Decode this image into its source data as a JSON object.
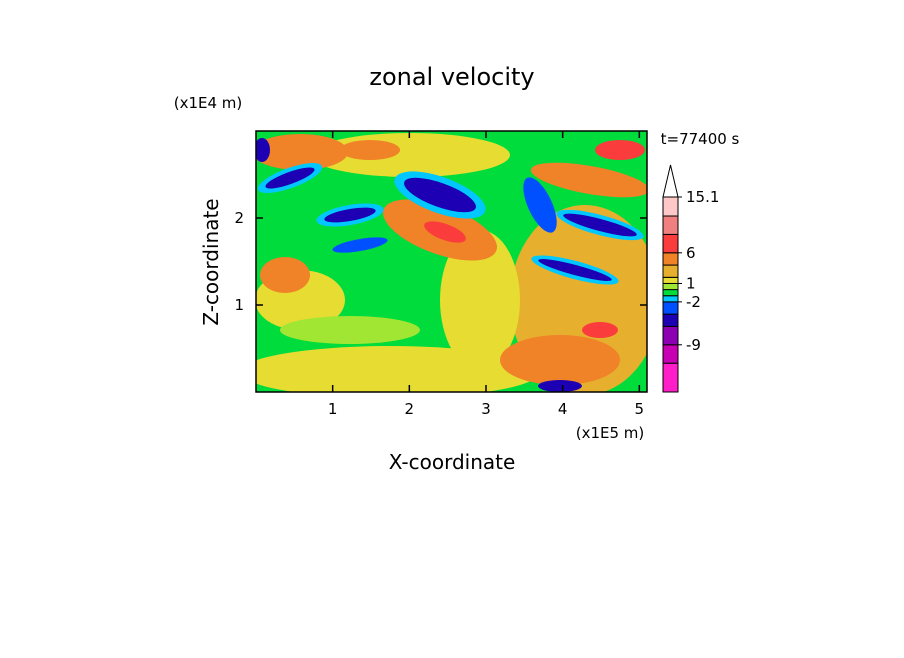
{
  "chart_data": {
    "type": "contour",
    "title": "zonal velocity",
    "time_label": "t=77400 s",
    "x_label": "X-coordinate",
    "y_label": "Z-coordinate",
    "x_unit": "(x1E5 m)",
    "y_unit": "(x1E4 m)",
    "xlim": [
      0,
      5.1
    ],
    "ylim": [
      0,
      3
    ],
    "xticks": [
      1,
      2,
      3,
      4,
      5
    ],
    "yticks": [
      1,
      2
    ],
    "colorbar": {
      "levels": [
        -16.7,
        -12,
        -9,
        -6,
        -4,
        -2,
        -1,
        0,
        1,
        2,
        4,
        6,
        9,
        12,
        15.1
      ],
      "colors": [
        "#ff1ec8",
        "#c800b4",
        "#8c00b4",
        "#1e00b4",
        "#0050ff",
        "#00c8ff",
        "#00dc3c",
        "#a0e632",
        "#e6dc32",
        "#e6af2d",
        "#f08228",
        "#fa3c3c",
        "#f08080",
        "#ffc8c8"
      ],
      "over_color": "#ffffff",
      "ticks": [
        15.1,
        6,
        1,
        -2,
        -9
      ]
    }
  }
}
